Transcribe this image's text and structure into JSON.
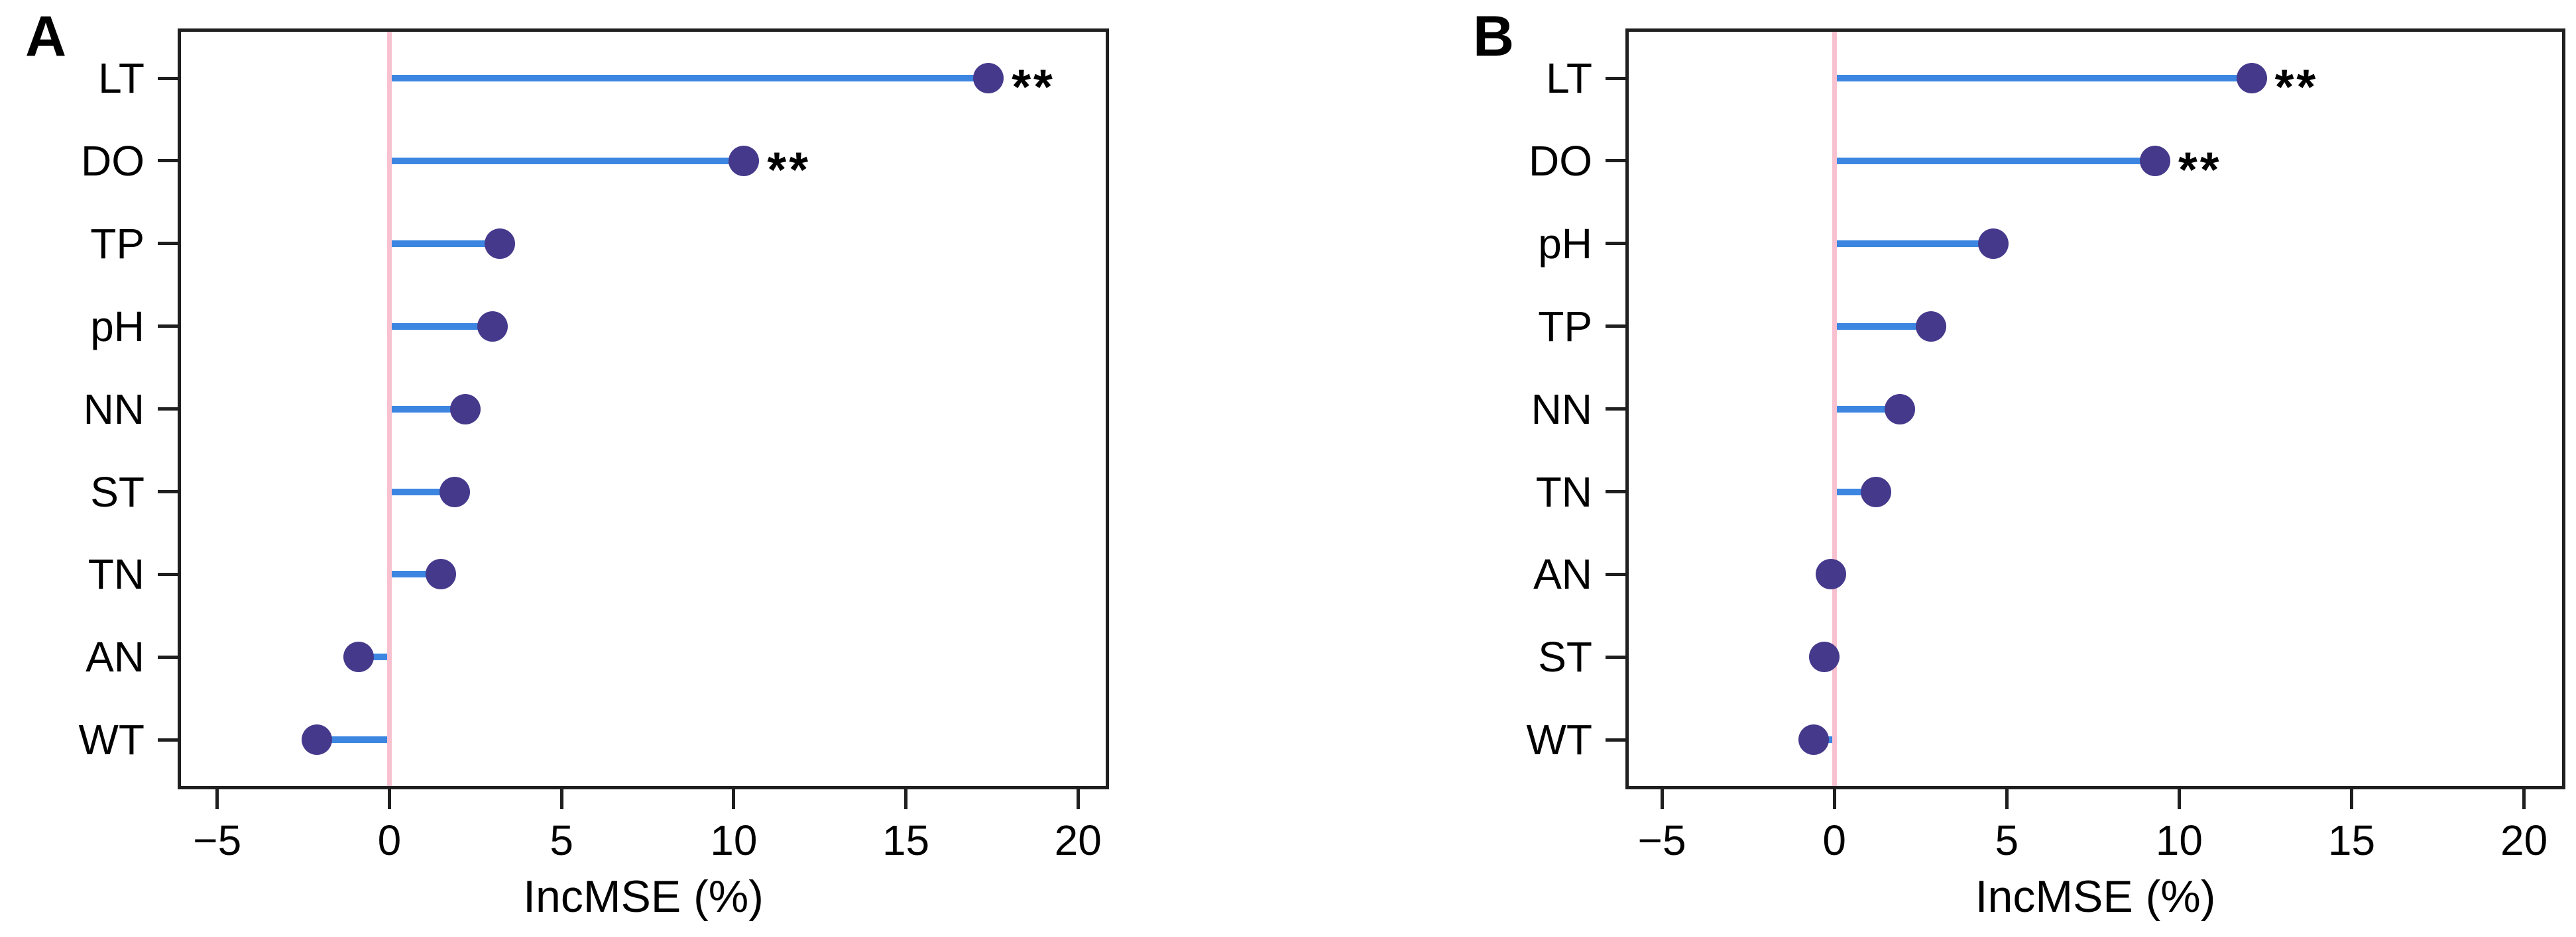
{
  "figure_title": "",
  "zero_line_color": "#F8C1CF",
  "stem_color": "#3C86E2",
  "dot_color": "#45398C",
  "axis_color": "#1F1F1F",
  "significance_marker": "**",
  "chart_data": [
    {
      "type": "scatter",
      "variant": "horizontal-lollipop",
      "panel_label": "A",
      "xlabel": "IncMSE (%)",
      "categories": [
        "LT",
        "DO",
        "TP",
        "pH",
        "NN",
        "ST",
        "TN",
        "AN",
        "WT"
      ],
      "values": [
        17.4,
        10.3,
        3.2,
        3.0,
        2.2,
        1.9,
        1.5,
        -0.9,
        -2.1
      ],
      "significance": [
        "**",
        "**",
        "",
        "",
        "",
        "",
        "",
        "",
        ""
      ],
      "x_ticks": [
        -5,
        0,
        5,
        10,
        15,
        20
      ],
      "x_tick_labels": [
        "−5",
        "0",
        "5",
        "10",
        "15",
        "20"
      ],
      "xlim": [
        -6.15,
        20.9
      ],
      "zero_reference_line": 0,
      "grid": false,
      "legend": "none"
    },
    {
      "type": "scatter",
      "variant": "horizontal-lollipop",
      "panel_label": "B",
      "xlabel": "IncMSE (%)",
      "categories": [
        "LT",
        "DO",
        "pH",
        "TP",
        "NN",
        "TN",
        "AN",
        "ST",
        "WT"
      ],
      "values": [
        12.1,
        9.3,
        4.6,
        2.8,
        1.9,
        1.2,
        -0.1,
        -0.3,
        -0.6
      ],
      "significance": [
        "**",
        "**",
        "",
        "",
        "",
        "",
        "",
        "",
        ""
      ],
      "x_ticks": [
        -5,
        0,
        5,
        10,
        15,
        20
      ],
      "x_tick_labels": [
        "−5",
        "0",
        "5",
        "10",
        "15",
        "20"
      ],
      "xlim": [
        -6.06,
        21.2
      ],
      "zero_reference_line": 0,
      "grid": false,
      "legend": "none"
    }
  ]
}
